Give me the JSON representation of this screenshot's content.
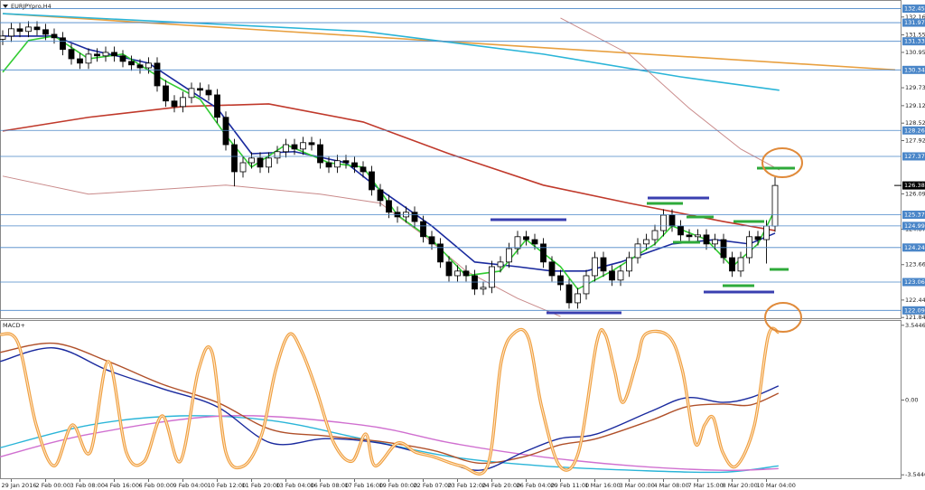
{
  "chart_data": [
    {
      "type": "candlestick",
      "title": "EURJPYpro,H4",
      "categories": [
        null,
        "29 Jan 2016",
        null,
        null,
        null,
        "2 Feb 00:00",
        null,
        null,
        null,
        "3 Feb 08:00",
        null,
        null,
        null,
        "4 Feb 16:00",
        null,
        null,
        null,
        "6 Feb 00:00",
        null,
        null,
        null,
        "9 Feb 04:00",
        null,
        null,
        null,
        "10 Feb 12:00",
        null,
        null,
        null,
        "11 Feb 20:00",
        null,
        null,
        null,
        "13 Feb 04:00",
        null,
        null,
        null,
        "16 Feb 08:00",
        null,
        null,
        null,
        "17 Feb 16:00",
        null,
        null,
        null,
        "19 Feb 00:00",
        null,
        null,
        null,
        "22 Feb 07:00",
        null,
        null,
        null,
        "23 Feb 12:00",
        null,
        null,
        null,
        "24 Feb 20:00",
        null,
        null,
        null,
        "26 Feb 04:00",
        null,
        null,
        null,
        "29 Feb 11:00",
        null,
        null,
        null,
        "1 Mar 16:00",
        null,
        null,
        null,
        "3 Mar 00:00",
        null,
        null,
        null,
        "4 Mar 08:00",
        null,
        null,
        null,
        "7 Mar 15:00",
        null,
        null,
        null,
        "8 Mar 20:00",
        null,
        null,
        null,
        "10 Mar 04:00",
        null
      ],
      "open": [
        131.4,
        131.51,
        131.76,
        131.67,
        131.82,
        131.73,
        131.57,
        131.45,
        131.05,
        130.73,
        130.58,
        130.89,
        130.83,
        130.95,
        130.83,
        130.64,
        130.52,
        130.42,
        130.58,
        129.8,
        129.28,
        129.09,
        129.4,
        129.71,
        129.65,
        129.49,
        128.72,
        127.78,
        126.85,
        127.16,
        127.32,
        127.01,
        127.32,
        127.54,
        127.78,
        127.63,
        127.85,
        127.78,
        127.16,
        127.01,
        127.23,
        127.16,
        127.01,
        126.85,
        126.23,
        125.86,
        125.46,
        125.3,
        125.46,
        125.14,
        124.62,
        124.37,
        123.75,
        123.28,
        123.44,
        123.28,
        122.82,
        122.88,
        123.59,
        123.75,
        124.21,
        124.62,
        124.52,
        124.37,
        123.75,
        123.28,
        122.97,
        122.35,
        122.66,
        123.28,
        123.9,
        123.44,
        123.13,
        123.44,
        123.9,
        124.37,
        124.52,
        124.83,
        125.36,
        124.99,
        124.68,
        124.62,
        124.68,
        124.37,
        124.52,
        123.9,
        123.44,
        123.9,
        124.62,
        124.52,
        124.99
      ],
      "high": [
        131.71,
        131.96,
        131.96,
        132.02,
        132.02,
        131.93,
        131.77,
        131.65,
        131.25,
        130.93,
        131.09,
        131.09,
        131.15,
        131.15,
        131.03,
        130.84,
        130.72,
        130.78,
        130.78,
        130.0,
        129.48,
        129.6,
        129.91,
        129.91,
        129.85,
        129.69,
        128.92,
        127.98,
        127.36,
        127.52,
        127.52,
        127.52,
        127.74,
        127.98,
        127.98,
        128.05,
        128.05,
        127.98,
        127.36,
        127.43,
        127.43,
        127.36,
        127.21,
        127.05,
        126.43,
        126.06,
        125.66,
        125.66,
        125.66,
        125.34,
        124.82,
        124.57,
        123.95,
        123.64,
        123.64,
        123.48,
        123.08,
        123.79,
        123.95,
        124.41,
        124.82,
        124.82,
        124.72,
        124.57,
        123.95,
        123.48,
        123.17,
        122.86,
        123.48,
        124.1,
        124.1,
        123.64,
        123.64,
        124.1,
        124.57,
        124.72,
        125.03,
        125.56,
        125.56,
        125.19,
        124.88,
        124.88,
        124.88,
        124.72,
        124.72,
        124.1,
        124.1,
        124.82,
        124.82,
        125.19,
        126.7
      ],
      "low": [
        131.2,
        131.31,
        131.47,
        131.47,
        131.53,
        131.37,
        131.25,
        130.85,
        130.53,
        130.38,
        130.38,
        130.63,
        130.63,
        130.63,
        130.44,
        130.32,
        130.22,
        130.22,
        129.6,
        129.08,
        128.89,
        128.89,
        129.2,
        129.45,
        129.29,
        128.52,
        127.58,
        126.35,
        126.65,
        126.96,
        126.81,
        126.81,
        127.12,
        127.34,
        127.43,
        127.43,
        127.58,
        126.96,
        126.81,
        126.81,
        126.96,
        126.81,
        126.65,
        126.03,
        125.66,
        125.26,
        125.1,
        125.1,
        124.94,
        124.42,
        124.17,
        123.55,
        123.08,
        123.08,
        123.08,
        122.62,
        122.62,
        122.68,
        123.39,
        123.55,
        124.01,
        124.32,
        124.17,
        123.55,
        123.08,
        122.77,
        122.15,
        122.15,
        122.46,
        123.08,
        123.24,
        122.93,
        122.93,
        123.24,
        123.7,
        124.17,
        124.32,
        124.63,
        124.79,
        124.48,
        124.42,
        124.42,
        124.17,
        124.17,
        123.7,
        123.24,
        123.24,
        123.7,
        124.32,
        123.7,
        124.79
      ],
      "close": [
        131.51,
        131.76,
        131.67,
        131.82,
        131.73,
        131.57,
        131.45,
        131.05,
        130.73,
        130.58,
        130.89,
        130.83,
        130.95,
        130.83,
        130.64,
        130.52,
        130.42,
        130.58,
        129.8,
        129.28,
        129.09,
        129.4,
        129.71,
        129.65,
        129.49,
        128.72,
        127.78,
        126.85,
        127.16,
        127.32,
        127.01,
        127.32,
        127.54,
        127.78,
        127.63,
        127.85,
        127.78,
        127.16,
        127.01,
        127.23,
        127.16,
        127.01,
        126.85,
        126.23,
        125.86,
        125.46,
        125.3,
        125.46,
        125.14,
        124.62,
        124.37,
        123.75,
        123.28,
        123.44,
        123.28,
        122.82,
        122.88,
        123.59,
        123.75,
        124.21,
        124.62,
        124.52,
        124.37,
        123.75,
        123.28,
        122.97,
        122.35,
        122.66,
        123.28,
        123.9,
        123.44,
        123.13,
        123.44,
        123.9,
        124.37,
        124.52,
        124.83,
        125.36,
        124.99,
        124.68,
        124.62,
        124.68,
        124.37,
        124.52,
        123.9,
        123.44,
        123.9,
        124.62,
        124.52,
        124.99,
        126.38
      ],
      "lines": [
        {
          "color": "#e8a040",
          "x": [
            0,
            104
          ],
          "values": [
            132.28,
            130.35
          ]
        },
        {
          "color": "#2bb5d8",
          "x": [
            0,
            42,
            63,
            79,
            90.5
          ],
          "values": [
            132.28,
            131.67,
            130.89,
            130.11,
            129.65
          ]
        },
        {
          "color": "#c98a8a",
          "x": [
            65,
            73,
            80,
            86,
            90.5
          ],
          "values": [
            132.13,
            130.89,
            129.03,
            127.63,
            126.91
          ]
        },
        {
          "color": "#c98a8a",
          "x": [
            0,
            10,
            26,
            37,
            44,
            49,
            54,
            60,
            65
          ],
          "values": [
            126.7,
            126.08,
            126.39,
            126.08,
            125.77,
            124.68,
            123.44,
            122.5,
            121.88
          ]
        },
        {
          "color": "#c0392b",
          "x": [
            0,
            10,
            21,
            31,
            42,
            52,
            63,
            73,
            84,
            90
          ],
          "values": [
            128.25,
            128.72,
            129.09,
            129.18,
            128.56,
            127.47,
            126.39,
            125.77,
            125.14,
            124.83
          ]
        },
        {
          "color": "#1a2a9e",
          "x": [
            0,
            6,
            10,
            17,
            21,
            25,
            29,
            34,
            40,
            44,
            50,
            55,
            60,
            64,
            68,
            72,
            78,
            83,
            87,
            90
          ],
          "values": [
            131.51,
            131.51,
            131.05,
            130.58,
            129.8,
            129.03,
            127.47,
            127.54,
            127.16,
            126.23,
            124.99,
            123.75,
            123.59,
            123.44,
            123.44,
            123.75,
            124.37,
            124.52,
            124.37,
            124.74
          ]
        },
        {
          "color": "#33cc33",
          "x": [
            0,
            3,
            6,
            10,
            14,
            19,
            23,
            26,
            29,
            33,
            38,
            42,
            46,
            50,
            54,
            58,
            61,
            65,
            67,
            71,
            76,
            78,
            82,
            85,
            88,
            90
          ],
          "values": [
            130.27,
            131.36,
            131.51,
            130.73,
            130.89,
            129.96,
            129.34,
            128.1,
            127.01,
            127.78,
            127.16,
            127.01,
            125.36,
            124.52,
            123.28,
            123.44,
            124.52,
            123.59,
            122.82,
            123.44,
            124.37,
            124.99,
            124.52,
            123.59,
            124.37,
            125.55
          ]
        }
      ],
      "ylim": [
        121.82,
        132.5
      ],
      "yticks": [
        132.165,
        {
          "value": 131.55,
          "label": "131.550"
        },
        {
          "value": 130.95,
          "label": "130.950"
        },
        129.735,
        {
          "value": 129.12,
          "label": "129.120"
        },
        {
          "value": 128.52,
          "label": "128.520"
        },
        {
          "value": 127.92,
          "label": "127.920"
        },
        {
          "value": 126.09,
          "label": "126.090"
        },
        124.875,
        {
          "value": 123.66,
          "label": "123.660"
        },
        122.445,
        121.845
      ],
      "levels": [
        {
          "value": 132.452,
          "label": "132.452"
        },
        {
          "value": 131.97,
          "label": "131.970"
        },
        {
          "value": 131.33,
          "label": "131.330"
        },
        {
          "value": 130.348,
          "label": "130.348"
        },
        {
          "value": 128.269,
          "label": "128.269"
        },
        {
          "value": 127.378,
          "label": "127.378"
        },
        {
          "value": 125.374,
          "label": "125.374"
        },
        {
          "value": 124.99,
          "label": "124.990"
        },
        {
          "value": 124.248,
          "label": "124.248"
        },
        {
          "value": 123.062,
          "label": "123.062"
        },
        {
          "value": 122.09,
          "label": "122.090"
        }
      ],
      "current_price": {
        "value": 126.38,
        "label": "126.380"
      }
    },
    {
      "type": "line",
      "title": "MACD+",
      "lines": [
        {
          "color": "#2bb5d8",
          "x": [
            -0.3,
            10.2,
            20.7,
            31.3,
            41.8,
            52.3,
            62.8,
            73.4,
            83.9,
            90.4
          ],
          "values": [
            -2.26,
            -1.18,
            -0.75,
            -0.97,
            -1.83,
            -2.69,
            -3.12,
            -3.33,
            -3.42,
            -3.12
          ]
        },
        {
          "color": "#d070d0",
          "x": [
            -0.3,
            10.2,
            26,
            41.8,
            52.3,
            62.8,
            73.4,
            83.9,
            90.4
          ],
          "values": [
            -2.69,
            -1.61,
            -0.75,
            -1.18,
            -2.04,
            -2.69,
            -3.12,
            -3.33,
            -3.25
          ]
        },
        {
          "color": "#b0502a",
          "x": [
            -0.3,
            6,
            12.3,
            18.6,
            25,
            31.3,
            37.6,
            43.9,
            50.2,
            55.5,
            60.7,
            64.9,
            69.2,
            75.5,
            79.7,
            83.9,
            87.1,
            90.4
          ],
          "values": [
            2.26,
            2.69,
            1.83,
            0.75,
            -0.11,
            -1.4,
            -1.7,
            -1.96,
            -2.39,
            -2.99,
            -2.69,
            -2.13,
            -1.83,
            -0.97,
            -0.32,
            -0.19,
            -0.24,
            0.32
          ]
        },
        {
          "color": "#1a2a9e",
          "x": [
            -0.3,
            6,
            12.3,
            18.6,
            25,
            31.3,
            37.6,
            43.9,
            50.2,
            55.5,
            60.7,
            64.9,
            69.2,
            75.5,
            79.7,
            83.9,
            87.1,
            90.4
          ],
          "values": [
            1.83,
            2.47,
            1.4,
            0.54,
            -0.32,
            -2.04,
            -1.83,
            -2.04,
            -2.69,
            -3.33,
            -2.47,
            -1.83,
            -1.61,
            -0.54,
            0.11,
            -0.11,
            0.11,
            0.67
          ]
        },
        {
          "color": "#f0a040",
          "x": [
            -0.3,
            1.8,
            3.9,
            6,
            8.1,
            10.2,
            12.3,
            14.4,
            16.5,
            18.6,
            20.7,
            22.8,
            24.4,
            26,
            28.1,
            30.2,
            31.8,
            33.4,
            34.9,
            36.5,
            38.6,
            40.7,
            42.3,
            43.4,
            46,
            48.1,
            50.2,
            53.4,
            56.5,
            58.1,
            59.7,
            61.3,
            62.8,
            64.9,
            67.1,
            69.2,
            70.2,
            71.3,
            72.3,
            73.9,
            74.9,
            77.6,
            79.2,
            80.7,
            81.8,
            82.8,
            83.9,
            85.5,
            87.6,
            89.2,
            90.4
          ],
          "values": [
            3.12,
            2.69,
            -1.18,
            -3.12,
            -1.18,
            -2.47,
            1.83,
            -2.47,
            -2.9,
            -0.75,
            -2.9,
            1.4,
            2.26,
            -2.47,
            -3.12,
            -1.61,
            1.4,
            3.12,
            2.26,
            0.54,
            -2.04,
            -2.9,
            -1.61,
            -3.12,
            -2.04,
            -2.47,
            -2.69,
            -3.12,
            -3.12,
            1.83,
            3.21,
            2.9,
            -0.32,
            -3.12,
            -2.47,
            2.69,
            3.12,
            1.4,
            -0.11,
            1.83,
            3.12,
            3.03,
            1.4,
            -2.04,
            -1.18,
            -0.84,
            -2.47,
            -3.12,
            -1.18,
            3.03,
            3.21
          ]
        }
      ],
      "ylim": [
        -3.75,
        3.75
      ],
      "yticks": [
        3.5446,
        {
          "value": 0,
          "label": "0.00"
        },
        -3.5446
      ]
    }
  ]
}
